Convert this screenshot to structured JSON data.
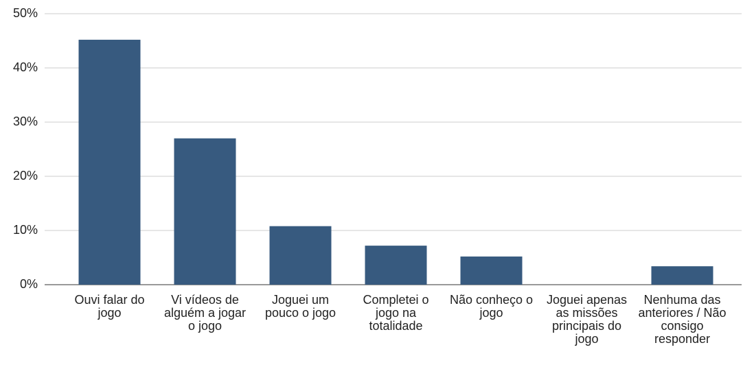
{
  "chart_data": {
    "type": "bar",
    "categories": [
      "Ouvi falar do jogo",
      "Vi vídeos de alguém a jogar o jogo",
      "Joguei um pouco o jogo",
      "Completei o jogo na totalidade",
      "Não conheço o jogo",
      "Joguei apenas as missões principais do jogo",
      "Nenhuma das anteriores / Não consigo responder"
    ],
    "values": [
      45.2,
      27,
      10.8,
      7.2,
      5.2,
      0,
      3.4
    ],
    "color": "#375a7f",
    "ylim": [
      0,
      50
    ],
    "yticks": [
      {
        "value": 0,
        "label": "0%"
      },
      {
        "value": 10,
        "label": "10%"
      },
      {
        "value": 20,
        "label": "20%"
      },
      {
        "value": 30,
        "label": "30%"
      },
      {
        "value": 40,
        "label": "40%"
      },
      {
        "value": 50,
        "label": "50%"
      }
    ],
    "grid": true
  }
}
